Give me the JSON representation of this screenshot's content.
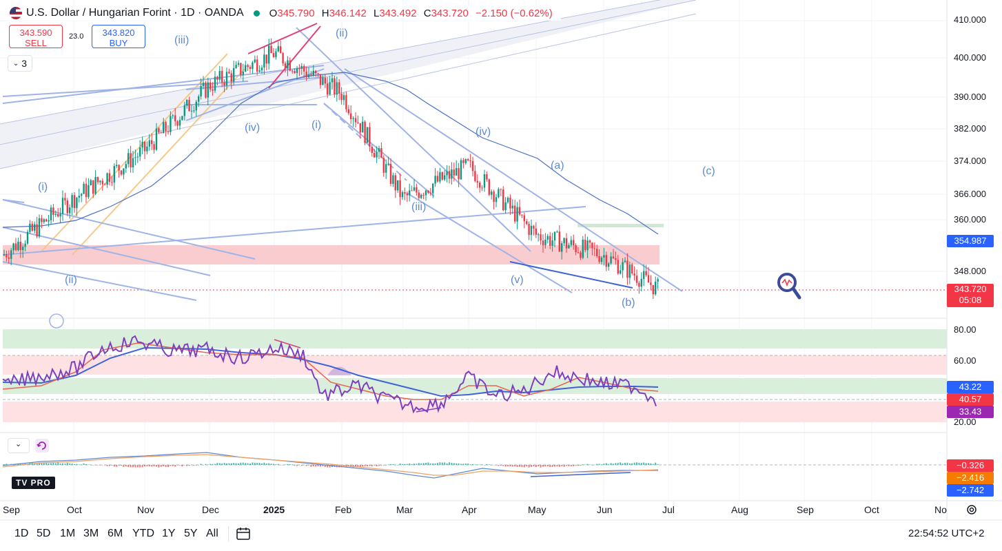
{
  "header": {
    "title": "U.S. Dollar / Hungarian Forint · 1D · OANDA",
    "ohlc": {
      "o_label": "O",
      "o_value": "345.790",
      "h_label": "H",
      "h_value": "346.142",
      "l_label": "L",
      "l_value": "343.492",
      "c_label": "C",
      "c_value": "343.720",
      "change": "−2.150 (−0.62%)"
    }
  },
  "trade": {
    "sell_price": "343.590",
    "sell_label": "SELL",
    "spread": "23.0",
    "buy_price": "343.820",
    "buy_label": "BUY"
  },
  "indicator_count": "3",
  "wave_labels": [
    "(iii)",
    "(ii)",
    "(iv)",
    "(i)",
    "(iv)",
    "(i)",
    "(iii)",
    "(a)",
    "(c)",
    "(ii)",
    "(v)",
    "(b)"
  ],
  "price_axis": [
    "410.000",
    "400.000",
    "390.000",
    "382.000",
    "374.000",
    "366.000",
    "360.000",
    "348.000"
  ],
  "price_tags": {
    "ma_value": "354.987",
    "last_price": "343.720",
    "countdown": "05:08"
  },
  "rsi_axis": [
    "80.00",
    "60.00",
    "20.00"
  ],
  "rsi_tags": {
    "ma": "43.22",
    "signal": "40.57",
    "rsi": "33.43"
  },
  "macd_tags": {
    "hist": "−0.326",
    "signal": "−2.416",
    "macd": "−2.742"
  },
  "x_axis": [
    "Sep",
    "Oct",
    "Nov",
    "Dec",
    "2025",
    "Feb",
    "Mar",
    "Apr",
    "May",
    "Jun",
    "Jul",
    "Aug",
    "Sep",
    "Oct",
    "No"
  ],
  "timeframes": [
    "1D",
    "5D",
    "1M",
    "3M",
    "6M",
    "YTD",
    "1Y",
    "5Y",
    "All"
  ],
  "clock": "22:54:52 UTC+2",
  "logo_text": "TV PRO",
  "colors": {
    "up": "#089981",
    "down": "#f23645",
    "wave": "#5b8ad6",
    "rsi_line": "#7e3fbf",
    "rsi_ma": "#3d63d6",
    "rsi_signal": "#e8644c",
    "zone_red": "#f8c4c8",
    "zone_green": "#d6ecd8"
  },
  "chart_data": {
    "type": "candlestick",
    "symbol": "USD/HUF",
    "ohlc_last": {
      "open": 345.79,
      "high": 346.142,
      "low": 343.492,
      "close": 343.72
    },
    "ylim": [
      340,
      412
    ],
    "key_points": [
      {
        "date": "Sep",
        "price": 352
      },
      {
        "date": "Oct",
        "price": 366
      },
      {
        "date": "Nov",
        "price": 378
      },
      {
        "date": "Dec",
        "price": 394
      },
      {
        "date": "2025",
        "price": 402
      },
      {
        "date": "Feb",
        "price": 392
      },
      {
        "date": "Mar",
        "price": 366
      },
      {
        "date": "Apr",
        "price": 374
      },
      {
        "date": "May",
        "price": 357
      },
      {
        "date": "Jun",
        "price": 352
      },
      {
        "date": "Jun-end",
        "price": 343.72
      }
    ],
    "rsi_levels": [
      20,
      40,
      60,
      80
    ]
  },
  "icons": [
    "flag-icon",
    "chevron-down-icon",
    "refresh-icon",
    "magnifier-icon",
    "calendar-range-icon",
    "settings-icon"
  ]
}
